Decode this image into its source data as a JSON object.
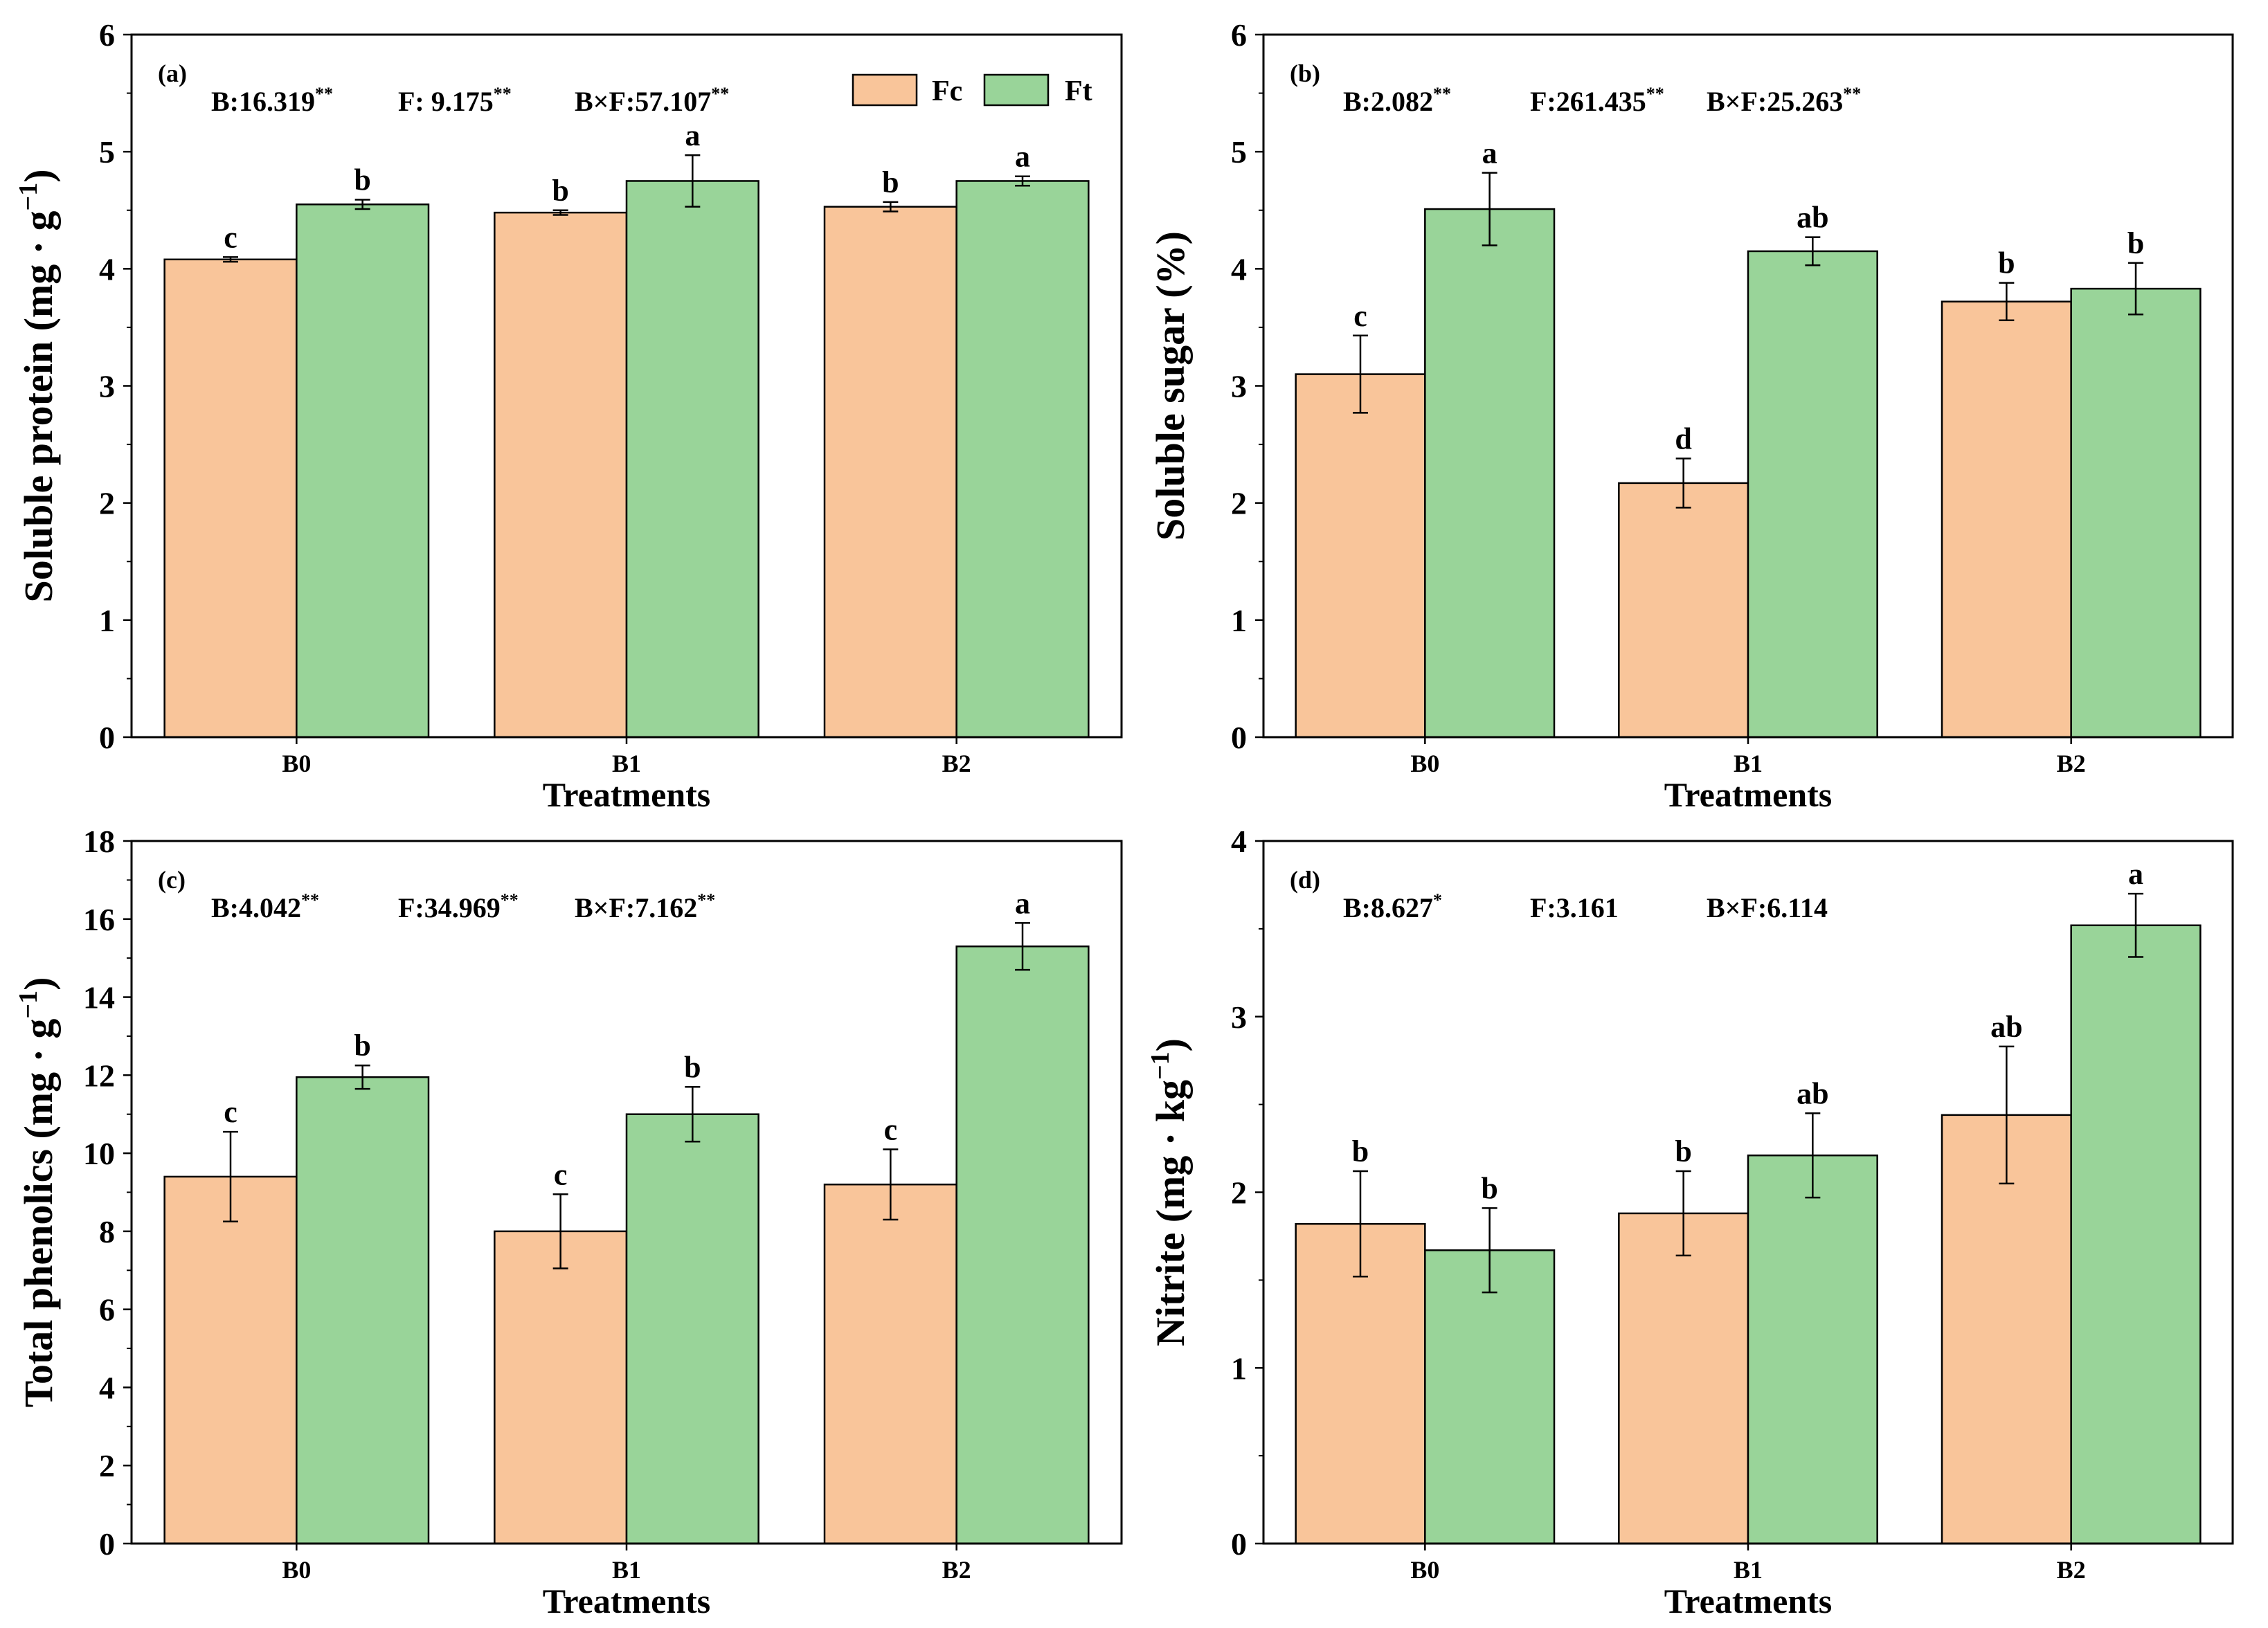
{
  "colors": {
    "Fc": "#f9c59a",
    "Ft": "#99d499",
    "axis": "#000000"
  },
  "legend": {
    "Fc": "Fc",
    "Ft": "Ft"
  },
  "chart_data": [
    {
      "type": "bar",
      "panel_label": "(a)",
      "stats": [
        {
          "label": "B:16.319",
          "sup": "**"
        },
        {
          "label": "F: 9.175",
          "sup": "**"
        },
        {
          "label": "B×F:57.107",
          "sup": "**"
        }
      ],
      "ylabel": "Soluble protein (mg · g",
      "ylabel_sup": "−1",
      "ylabel_end": ")",
      "xlabel": "Treatments",
      "categories": [
        "B0",
        "B1",
        "B2"
      ],
      "ylim": [
        0,
        6
      ],
      "yticks": [
        0,
        1,
        2,
        3,
        4,
        5,
        6
      ],
      "series": [
        {
          "name": "Fc",
          "values": [
            4.08,
            4.48,
            4.53
          ],
          "errors": [
            0.02,
            0.02,
            0.04
          ],
          "letters": [
            "c",
            "b",
            "b"
          ]
        },
        {
          "name": "Ft",
          "values": [
            4.55,
            4.75,
            4.75
          ],
          "errors": [
            0.04,
            0.22,
            0.04
          ],
          "letters": [
            "b",
            "a",
            "a"
          ]
        }
      ],
      "legend": "top-right",
      "grid": false
    },
    {
      "type": "bar",
      "panel_label": "(b)",
      "stats": [
        {
          "label": "B:2.082",
          "sup": "**"
        },
        {
          "label": "F:261.435",
          "sup": "**"
        },
        {
          "label": "B×F:25.263",
          "sup": "**"
        }
      ],
      "ylabel": "Soluble sugar (%)",
      "ylabel_sup": "",
      "ylabel_end": "",
      "xlabel": "Treatments",
      "categories": [
        "B0",
        "B1",
        "B2"
      ],
      "ylim": [
        0,
        6
      ],
      "yticks": [
        0,
        1,
        2,
        3,
        4,
        5,
        6
      ],
      "series": [
        {
          "name": "Fc",
          "values": [
            3.1,
            2.17,
            3.72
          ],
          "errors": [
            0.33,
            0.21,
            0.16
          ],
          "letters": [
            "c",
            "d",
            "b"
          ]
        },
        {
          "name": "Ft",
          "values": [
            4.51,
            4.15,
            3.83
          ],
          "errors": [
            0.31,
            0.12,
            0.22
          ],
          "letters": [
            "a",
            "ab",
            "b"
          ]
        }
      ],
      "grid": false
    },
    {
      "type": "bar",
      "panel_label": "(c)",
      "stats": [
        {
          "label": "B:4.042",
          "sup": "**"
        },
        {
          "label": "F:34.969",
          "sup": "**"
        },
        {
          "label": "B×F:7.162",
          "sup": "**"
        }
      ],
      "ylabel": "Total phenolics (mg · g",
      "ylabel_sup": "−1",
      "ylabel_end": ")",
      "xlabel": "Treatments",
      "categories": [
        "B0",
        "B1",
        "B2"
      ],
      "ylim": [
        0,
        18
      ],
      "yticks": [
        0,
        2,
        4,
        6,
        8,
        10,
        12,
        14,
        16,
        18
      ],
      "series": [
        {
          "name": "Fc",
          "values": [
            9.4,
            8.0,
            9.2
          ],
          "errors": [
            1.15,
            0.95,
            0.9
          ],
          "letters": [
            "c",
            "c",
            "c"
          ]
        },
        {
          "name": "Ft",
          "values": [
            11.95,
            11.0,
            15.3
          ],
          "errors": [
            0.3,
            0.7,
            0.6
          ],
          "letters": [
            "b",
            "b",
            "a"
          ]
        }
      ],
      "grid": false
    },
    {
      "type": "bar",
      "panel_label": "(d)",
      "stats": [
        {
          "label": "B:8.627",
          "sup": "*"
        },
        {
          "label": "F:3.161",
          "sup": ""
        },
        {
          "label": "B×F:6.114",
          "sup": ""
        }
      ],
      "ylabel": "Nitrite (mg · kg",
      "ylabel_sup": "−1",
      "ylabel_end": ")",
      "xlabel": "Treatments",
      "categories": [
        "B0",
        "B1",
        "B2"
      ],
      "ylim": [
        0,
        4
      ],
      "yticks": [
        0,
        1,
        2,
        3,
        4
      ],
      "series": [
        {
          "name": "Fc",
          "values": [
            1.82,
            1.88,
            2.44
          ],
          "errors": [
            0.3,
            0.24,
            0.39
          ],
          "letters": [
            "b",
            "b",
            "ab"
          ]
        },
        {
          "name": "Ft",
          "values": [
            1.67,
            2.21,
            3.52
          ],
          "errors": [
            0.24,
            0.24,
            0.18
          ],
          "letters": [
            "b",
            "ab",
            "a"
          ]
        }
      ],
      "grid": false
    }
  ]
}
